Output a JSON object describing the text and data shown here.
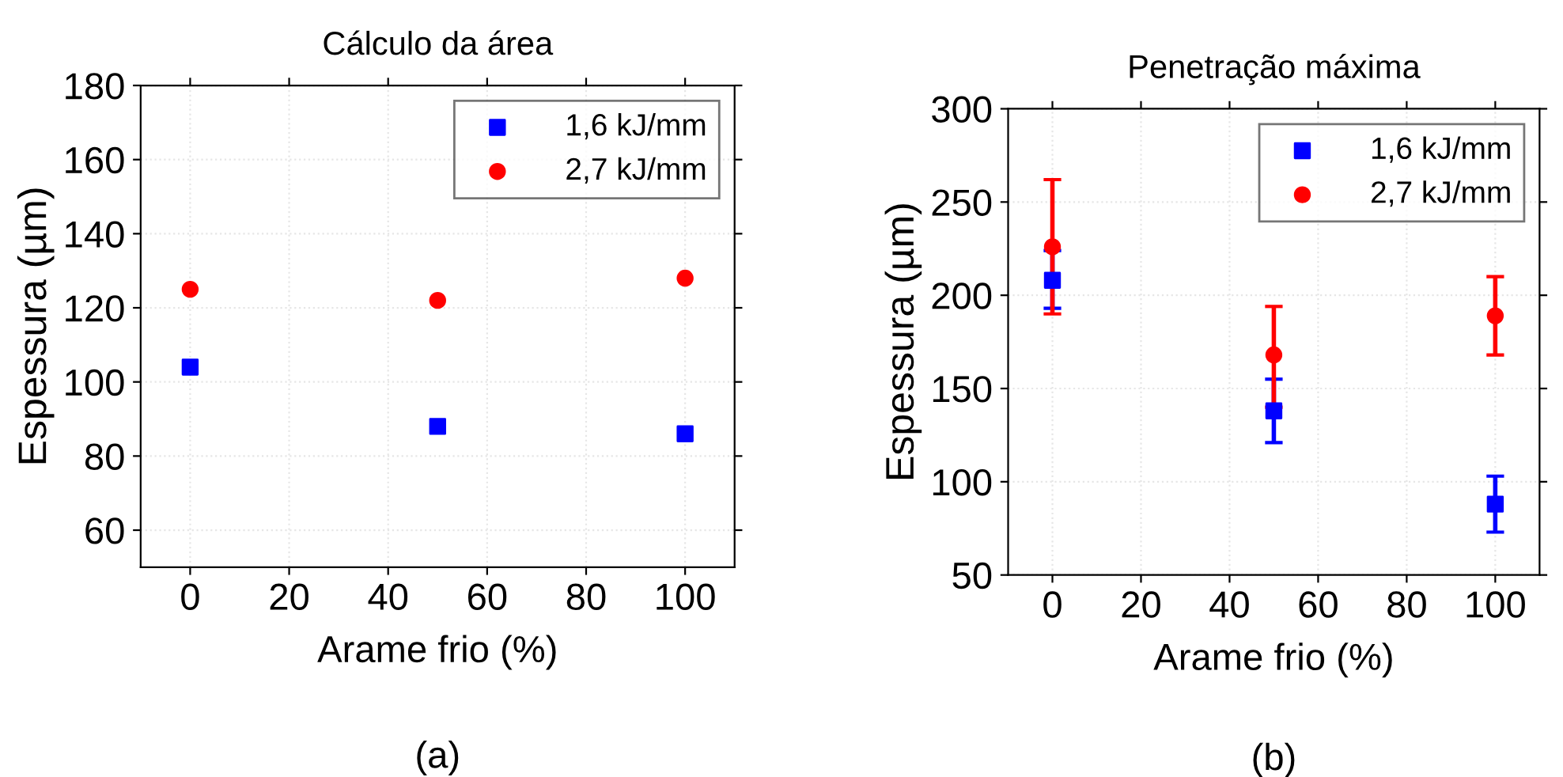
{
  "chart_data": [
    {
      "type": "scatter",
      "title": "Cálculo da área",
      "xlabel": "Arame frio (%)",
      "ylabel": "Espessura (µm)",
      "annotations": [
        "(a)"
      ],
      "x": [
        0,
        50,
        100
      ],
      "xlim": [
        -10,
        110
      ],
      "xticks": [
        0,
        20,
        40,
        60,
        80,
        100
      ],
      "ylim": [
        50,
        180
      ],
      "yticks": [
        60,
        80,
        100,
        120,
        140,
        160,
        180
      ],
      "grid": true,
      "legend": "top right",
      "series": [
        {
          "name": "1,6 kJ/mm",
          "color": "#0000ff",
          "marker": "square",
          "values": [
            104,
            88,
            86
          ]
        },
        {
          "name": "2,7 kJ/mm",
          "color": "#ff0000",
          "marker": "circle",
          "values": [
            125,
            122,
            128
          ]
        }
      ]
    },
    {
      "type": "scatter",
      "title": "Penetração máxima",
      "xlabel": "Arame frio (%)",
      "ylabel": "Espessura (µm)",
      "annotations": [
        "(b)"
      ],
      "x": [
        0,
        50,
        100
      ],
      "xlim": [
        -10,
        110
      ],
      "xticks": [
        0,
        20,
        40,
        60,
        80,
        100
      ],
      "ylim": [
        50,
        300
      ],
      "yticks": [
        50,
        100,
        150,
        200,
        250,
        300
      ],
      "grid": true,
      "legend": "top right",
      "series": [
        {
          "name": "1,6 kJ/mm",
          "color": "#0000ff",
          "marker": "square",
          "values": [
            208,
            138,
            88
          ],
          "errors": [
            [
              193,
              224
            ],
            [
              121,
              155
            ],
            [
              73,
              103
            ]
          ]
        },
        {
          "name": "2,7 kJ/mm",
          "color": "#ff0000",
          "marker": "circle",
          "values": [
            226,
            168,
            189
          ],
          "errors": [
            [
              190,
              262
            ],
            [
              140,
              194
            ],
            [
              168,
              210
            ]
          ]
        }
      ]
    }
  ]
}
